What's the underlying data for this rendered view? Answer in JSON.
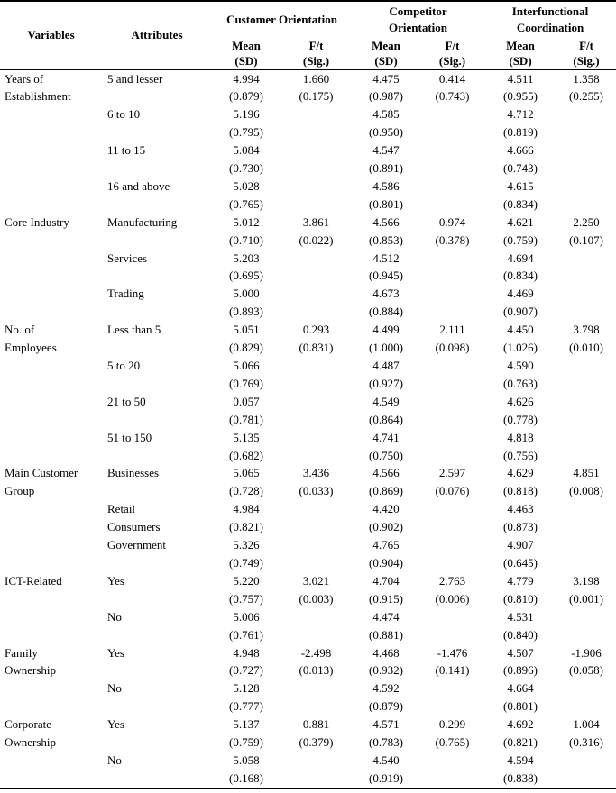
{
  "table": {
    "header": {
      "variables": "Variables",
      "attributes": "Attributes",
      "groups": [
        {
          "label_lines": [
            "Customer Orientation"
          ]
        },
        {
          "label_lines": [
            "Competitor",
            "Orientation"
          ]
        },
        {
          "label_lines": [
            "Interfunctional",
            "Coordination"
          ]
        }
      ],
      "mean_lines": [
        "Mean",
        "(SD)"
      ],
      "ft_lines": [
        "F/t",
        "(Sig.)"
      ]
    },
    "groups": [
      {
        "variable_lines": [
          "Years of",
          "Establishment"
        ],
        "rows": [
          {
            "attribute_lines": [
              "5 and lesser"
            ],
            "cells": [
              {
                "mean": "4.994",
                "sd": "(0.879)",
                "ft": "1.660",
                "sig": "(0.175)"
              },
              {
                "mean": "4.475",
                "sd": "(0.987)",
                "ft": "0.414",
                "sig": "(0.743)"
              },
              {
                "mean": "4.511",
                "sd": "(0.955)",
                "ft": "1.358",
                "sig": "(0.255)"
              }
            ]
          },
          {
            "attribute_lines": [
              "6 to 10"
            ],
            "cells": [
              {
                "mean": "5.196",
                "sd": "(0.795)"
              },
              {
                "mean": "4.585",
                "sd": "(0.950)"
              },
              {
                "mean": "4.712",
                "sd": "(0.819)"
              }
            ]
          },
          {
            "attribute_lines": [
              "11 to 15"
            ],
            "cells": [
              {
                "mean": "5.084",
                "sd": "(0.730)"
              },
              {
                "mean": "4.547",
                "sd": "(0.891)"
              },
              {
                "mean": "4.666",
                "sd": "(0.743)"
              }
            ]
          },
          {
            "attribute_lines": [
              "16 and above"
            ],
            "cells": [
              {
                "mean": "5.028",
                "sd": "(0.765)"
              },
              {
                "mean": "4.586",
                "sd": "(0.801)"
              },
              {
                "mean": "4.615",
                "sd": "(0.834)"
              }
            ]
          }
        ]
      },
      {
        "variable_lines": [
          "Core Industry"
        ],
        "rows": [
          {
            "attribute_lines": [
              "Manufacturing"
            ],
            "cells": [
              {
                "mean": "5.012",
                "sd": "(0.710)",
                "ft": "3.861",
                "sig": "(0.022)"
              },
              {
                "mean": "4.566",
                "sd": "(0.853)",
                "ft": "0.974",
                "sig": "(0.378)"
              },
              {
                "mean": "4.621",
                "sd": "(0.759)",
                "ft": "2.250",
                "sig": "(0.107)"
              }
            ]
          },
          {
            "attribute_lines": [
              "Services"
            ],
            "cells": [
              {
                "mean": "5.203",
                "sd": "(0.695)"
              },
              {
                "mean": "4.512",
                "sd": "(0.945)"
              },
              {
                "mean": "4.694",
                "sd": "(0.834)"
              }
            ]
          },
          {
            "attribute_lines": [
              "Trading"
            ],
            "cells": [
              {
                "mean": "5.000",
                "sd": "(0.893)"
              },
              {
                "mean": "4.673",
                "sd": "(0.884)"
              },
              {
                "mean": "4.469",
                "sd": "(0.907)"
              }
            ]
          }
        ]
      },
      {
        "variable_lines": [
          "No. of",
          "Employees"
        ],
        "rows": [
          {
            "attribute_lines": [
              "Less than 5"
            ],
            "cells": [
              {
                "mean": "5.051",
                "sd": "(0.829)",
                "ft": "0.293",
                "sig": "(0.831)"
              },
              {
                "mean": "4.499",
                "sd": "(1.000)",
                "ft": "2.111",
                "sig": "(0.098)"
              },
              {
                "mean": "4.450",
                "sd": "(1.026)",
                "ft": "3.798",
                "sig": "(0.010)"
              }
            ]
          },
          {
            "attribute_lines": [
              "5 to 20"
            ],
            "cells": [
              {
                "mean": "5.066",
                "sd": "(0.769)"
              },
              {
                "mean": "4.487",
                "sd": "(0.927)"
              },
              {
                "mean": "4.590",
                "sd": "(0.763)"
              }
            ]
          },
          {
            "attribute_lines": [
              "21 to 50"
            ],
            "cells": [
              {
                "mean": "0.057",
                "sd": "(0.781)"
              },
              {
                "mean": "4.549",
                "sd": "(0.864)"
              },
              {
                "mean": "4.626",
                "sd": "(0.778)"
              }
            ]
          },
          {
            "attribute_lines": [
              "51 to 150"
            ],
            "cells": [
              {
                "mean": "5.135",
                "sd": "(0.682)"
              },
              {
                "mean": "4.741",
                "sd": "(0.750)"
              },
              {
                "mean": "4.818",
                "sd": "(0.756)"
              }
            ]
          }
        ]
      },
      {
        "variable_lines": [
          "Main Customer",
          "Group"
        ],
        "rows": [
          {
            "attribute_lines": [
              "Businesses"
            ],
            "cells": [
              {
                "mean": "5.065",
                "sd": "(0.728)",
                "ft": "3.436",
                "sig": "(0.033)"
              },
              {
                "mean": "4.566",
                "sd": "(0.869)",
                "ft": "2.597",
                "sig": "(0.076)"
              },
              {
                "mean": "4.629",
                "sd": "(0.818)",
                "ft": "4.851",
                "sig": "(0.008)"
              }
            ]
          },
          {
            "attribute_lines": [
              "Retail",
              "Consumers"
            ],
            "cells": [
              {
                "mean": "4.984",
                "sd": "(0.821)"
              },
              {
                "mean": "4.420",
                "sd": "(0.902)"
              },
              {
                "mean": "4.463",
                "sd": "(0.873)"
              }
            ]
          },
          {
            "attribute_lines": [
              "Government"
            ],
            "cells": [
              {
                "mean": "5.326",
                "sd": "(0.749)"
              },
              {
                "mean": "4.765",
                "sd": "(0.904)"
              },
              {
                "mean": "4.907",
                "sd": "(0.645)"
              }
            ]
          }
        ]
      },
      {
        "variable_lines": [
          "ICT-Related"
        ],
        "rows": [
          {
            "attribute_lines": [
              "Yes"
            ],
            "cells": [
              {
                "mean": "5.220",
                "sd": "(0.757)",
                "ft": "3.021",
                "sig": "(0.003)"
              },
              {
                "mean": "4.704",
                "sd": "(0.915)",
                "ft": "2.763",
                "sig": "(0.006)"
              },
              {
                "mean": "4.779",
                "sd": "(0.810)",
                "ft": "3.198",
                "sig": "(0.001)"
              }
            ]
          },
          {
            "attribute_lines": [
              "No"
            ],
            "cells": [
              {
                "mean": "5.006",
                "sd": "(0.761)"
              },
              {
                "mean": "4.474",
                "sd": "(0.881)"
              },
              {
                "mean": "4.531",
                "sd": "(0.840)"
              }
            ]
          }
        ]
      },
      {
        "variable_lines": [
          "Family",
          "Ownership"
        ],
        "rows": [
          {
            "attribute_lines": [
              "Yes"
            ],
            "cells": [
              {
                "mean": "4.948",
                "sd": "(0.727)",
                "ft": "-2.498",
                "sig": "(0.013)"
              },
              {
                "mean": "4.468",
                "sd": "(0.932)",
                "ft": "-1.476",
                "sig": "(0.141)"
              },
              {
                "mean": "4.507",
                "sd": "(0.896)",
                "ft": "-1.906",
                "sig": "(0.058)"
              }
            ]
          },
          {
            "attribute_lines": [
              "No"
            ],
            "cells": [
              {
                "mean": "5.128",
                "sd": "(0.777)"
              },
              {
                "mean": "4.592",
                "sd": "(0.879)"
              },
              {
                "mean": "4.664",
                "sd": "(0.801)"
              }
            ]
          }
        ]
      },
      {
        "variable_lines": [
          "Corporate",
          "Ownership"
        ],
        "rows": [
          {
            "attribute_lines": [
              "Yes"
            ],
            "cells": [
              {
                "mean": "5.137",
                "sd": "(0.759)",
                "ft": "0.881",
                "sig": "(0.379)"
              },
              {
                "mean": "4.571",
                "sd": "(0.783)",
                "ft": "0.299",
                "sig": "(0.765)"
              },
              {
                "mean": "4.692",
                "sd": "(0.821)",
                "ft": "1.004",
                "sig": "(0.316)"
              }
            ]
          },
          {
            "attribute_lines": [
              "No"
            ],
            "cells": [
              {
                "mean": "5.058",
                "sd": "(0.168)"
              },
              {
                "mean": "4.540",
                "sd": "(0.919)"
              },
              {
                "mean": "4.594",
                "sd": "(0.838)"
              }
            ]
          }
        ]
      }
    ]
  }
}
